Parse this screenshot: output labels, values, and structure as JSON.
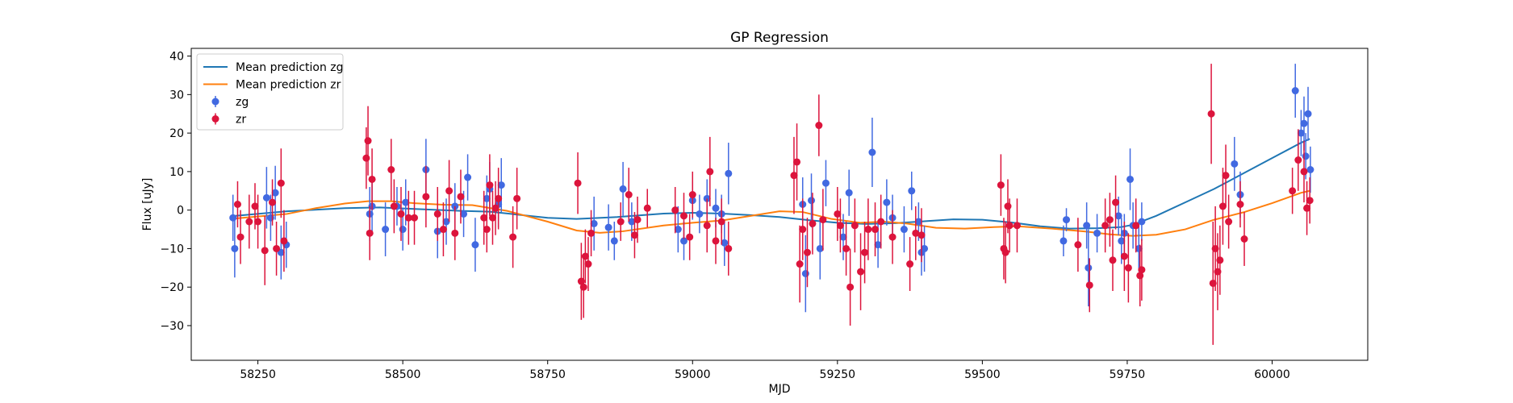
{
  "chart_data": {
    "type": "scatter",
    "title": "GP Regression",
    "xlabel": "MJD",
    "ylabel": "Flux [uJy]",
    "xlim": [
      58135,
      60165
    ],
    "ylim": [
      -39,
      42
    ],
    "xticks": [
      58250,
      58500,
      58750,
      59000,
      59250,
      59500,
      59750,
      60000
    ],
    "yticks": [
      -30,
      -20,
      -10,
      0,
      10,
      20,
      30,
      40
    ],
    "grid": false,
    "legend": "upper left",
    "series": [
      {
        "name": "Mean prediction zg",
        "kind": "line",
        "color": "#1f77b4",
        "points": [
          [
            58210,
            -1.5
          ],
          [
            58300,
            -0.3
          ],
          [
            58400,
            0.5
          ],
          [
            58460,
            0.7
          ],
          [
            58520,
            0.3
          ],
          [
            58600,
            -0.2
          ],
          [
            58650,
            -0.4
          ],
          [
            58750,
            -2.0
          ],
          [
            58800,
            -2.3
          ],
          [
            58870,
            -1.8
          ],
          [
            58950,
            -0.9
          ],
          [
            59000,
            -0.7
          ],
          [
            59050,
            -0.9
          ],
          [
            59100,
            -1.3
          ],
          [
            59150,
            -1.8
          ],
          [
            59200,
            -2.6
          ],
          [
            59250,
            -3.3
          ],
          [
            59300,
            -3.6
          ],
          [
            59350,
            -3.4
          ],
          [
            59400,
            -2.9
          ],
          [
            59450,
            -2.4
          ],
          [
            59500,
            -2.5
          ],
          [
            59550,
            -3.2
          ],
          [
            59600,
            -4.2
          ],
          [
            59650,
            -4.8
          ],
          [
            59700,
            -4.7
          ],
          [
            59740,
            -4.4
          ],
          [
            59760,
            -3.8
          ],
          [
            59800,
            -1.5
          ],
          [
            59850,
            2.0
          ],
          [
            59900,
            5.5
          ],
          [
            59950,
            9.5
          ],
          [
            60000,
            13.5
          ],
          [
            60050,
            17.5
          ],
          [
            60065,
            18.5
          ]
        ]
      },
      {
        "name": "Mean prediction zr",
        "kind": "line",
        "color": "#ff7f0e",
        "points": [
          [
            58210,
            -2.2
          ],
          [
            58300,
            -1.0
          ],
          [
            58350,
            0.5
          ],
          [
            58400,
            1.7
          ],
          [
            58440,
            2.3
          ],
          [
            58480,
            2.3
          ],
          [
            58520,
            1.8
          ],
          [
            58570,
            1.4
          ],
          [
            58620,
            1.3
          ],
          [
            58680,
            -0.2
          ],
          [
            58750,
            -3.0
          ],
          [
            58800,
            -5.3
          ],
          [
            58840,
            -5.9
          ],
          [
            58880,
            -5.5
          ],
          [
            58950,
            -4.0
          ],
          [
            59000,
            -3.3
          ],
          [
            59050,
            -2.7
          ],
          [
            59100,
            -1.5
          ],
          [
            59150,
            -0.3
          ],
          [
            59190,
            -0.5
          ],
          [
            59240,
            -2.3
          ],
          [
            59290,
            -3.3
          ],
          [
            59330,
            -3.0
          ],
          [
            59370,
            -3.5
          ],
          [
            59420,
            -4.6
          ],
          [
            59470,
            -4.8
          ],
          [
            59520,
            -4.4
          ],
          [
            59560,
            -4.2
          ],
          [
            59620,
            -4.8
          ],
          [
            59680,
            -5.6
          ],
          [
            59720,
            -6.3
          ],
          [
            59760,
            -6.7
          ],
          [
            59800,
            -6.4
          ],
          [
            59850,
            -5.0
          ],
          [
            59900,
            -2.5
          ],
          [
            59950,
            -0.6
          ],
          [
            60000,
            1.8
          ],
          [
            60050,
            4.5
          ],
          [
            60065,
            5.0
          ]
        ]
      },
      {
        "name": "zg",
        "kind": "errorbar",
        "color": "#4169e1",
        "points": [
          [
            58207,
            -2,
            6
          ],
          [
            58210,
            -10,
            7.5
          ],
          [
            58265,
            3.2,
            8
          ],
          [
            58272,
            -2,
            6
          ],
          [
            58280,
            4.5,
            7
          ],
          [
            58290,
            -11,
            7
          ],
          [
            58299,
            -9,
            6
          ],
          [
            58443,
            -1,
            7
          ],
          [
            58447,
            1,
            7
          ],
          [
            58470,
            -5,
            7
          ],
          [
            58490,
            1,
            5
          ],
          [
            58500,
            -5,
            5.5
          ],
          [
            58505,
            2,
            6
          ],
          [
            58540,
            10.5,
            8
          ],
          [
            58560,
            -5.5,
            7
          ],
          [
            58575,
            -3,
            6
          ],
          [
            58590,
            1,
            6
          ],
          [
            58605,
            -1,
            6
          ],
          [
            58612,
            8.5,
            6
          ],
          [
            58625,
            -9,
            7
          ],
          [
            58645,
            3,
            6
          ],
          [
            58650,
            5.5,
            7
          ],
          [
            58665,
            1.5,
            6
          ],
          [
            58670,
            6.5,
            7
          ],
          [
            58830,
            -3.5,
            7
          ],
          [
            58855,
            -4.5,
            6
          ],
          [
            58865,
            -8,
            5
          ],
          [
            58880,
            5.5,
            7
          ],
          [
            58895,
            -3,
            5
          ],
          [
            58975,
            -5,
            6
          ],
          [
            58985,
            -8,
            5
          ],
          [
            59000,
            2.5,
            5
          ],
          [
            59012,
            -1,
            5
          ],
          [
            59025,
            3,
            5
          ],
          [
            59040,
            0.5,
            5
          ],
          [
            59050,
            -1,
            5
          ],
          [
            59055,
            -8.5,
            6
          ],
          [
            59062,
            9.5,
            8
          ],
          [
            59190,
            1.5,
            7
          ],
          [
            59195,
            -16.5,
            10
          ],
          [
            59205,
            2.5,
            7
          ],
          [
            59220,
            -10,
            8
          ],
          [
            59230,
            7,
            6
          ],
          [
            59260,
            -7,
            6
          ],
          [
            59270,
            4.5,
            6
          ],
          [
            59310,
            15,
            9
          ],
          [
            59320,
            -9,
            6
          ],
          [
            59335,
            2,
            6
          ],
          [
            59345,
            -2,
            6
          ],
          [
            59365,
            -5,
            6
          ],
          [
            59378,
            5,
            5
          ],
          [
            59390,
            -3,
            5
          ],
          [
            59395,
            -11,
            6
          ],
          [
            59400,
            -10,
            6
          ],
          [
            59640,
            -8,
            4
          ],
          [
            59645,
            -2.5,
            3
          ],
          [
            59680,
            -4,
            6
          ],
          [
            59683,
            -15,
            10
          ],
          [
            59698,
            -6,
            5
          ],
          [
            59735,
            -1.5,
            5
          ],
          [
            59740,
            -8,
            6
          ],
          [
            59745,
            -6,
            5
          ],
          [
            59755,
            8,
            8
          ],
          [
            59760,
            -4,
            6
          ],
          [
            59770,
            -10,
            6
          ],
          [
            59775,
            -3,
            5
          ],
          [
            59935,
            12,
            7
          ],
          [
            59945,
            4,
            6
          ],
          [
            60040,
            31,
            7
          ],
          [
            60050,
            20,
            6
          ],
          [
            60055,
            22.5,
            7
          ],
          [
            60058,
            14,
            6
          ],
          [
            60062,
            25,
            7
          ],
          [
            60066,
            10.5,
            6
          ]
        ]
      },
      {
        "name": "zr",
        "kind": "errorbar",
        "color": "#dc143c",
        "points": [
          [
            58215,
            1.5,
            6
          ],
          [
            58220,
            -7,
            7
          ],
          [
            58235,
            -3,
            7
          ],
          [
            58245,
            1,
            6
          ],
          [
            58250,
            -3,
            7
          ],
          [
            58262,
            -10.5,
            9
          ],
          [
            58275,
            2,
            6
          ],
          [
            58282,
            -10,
            7
          ],
          [
            58290,
            7,
            9
          ],
          [
            58295,
            -8,
            8
          ],
          [
            58437,
            13.5,
            8
          ],
          [
            58440,
            18,
            9
          ],
          [
            58443,
            -6,
            7
          ],
          [
            58447,
            8,
            8
          ],
          [
            58480,
            10.5,
            8
          ],
          [
            58485,
            1,
            7
          ],
          [
            58497,
            -1,
            7
          ],
          [
            58510,
            -2,
            7
          ],
          [
            58520,
            -2,
            7
          ],
          [
            58540,
            3.5,
            8
          ],
          [
            58560,
            -1,
            7
          ],
          [
            58570,
            -5,
            7
          ],
          [
            58580,
            5,
            8
          ],
          [
            58590,
            -6,
            7
          ],
          [
            58600,
            3.5,
            7
          ],
          [
            58640,
            -2,
            7
          ],
          [
            58645,
            -5,
            6
          ],
          [
            58650,
            6.5,
            8
          ],
          [
            58655,
            -2,
            7
          ],
          [
            58660,
            0.5,
            7
          ],
          [
            58665,
            3,
            8
          ],
          [
            58690,
            -7,
            8
          ],
          [
            58697,
            3,
            8
          ],
          [
            58802,
            7,
            8
          ],
          [
            58808,
            -18.5,
            10
          ],
          [
            58812,
            -20,
            8
          ],
          [
            58815,
            -12,
            7
          ],
          [
            58820,
            -14,
            7
          ],
          [
            58825,
            -6,
            6
          ],
          [
            58876,
            -3,
            5
          ],
          [
            58890,
            4,
            7
          ],
          [
            58900,
            -6.5,
            6
          ],
          [
            58905,
            -2.5,
            6
          ],
          [
            58922,
            0.5,
            5
          ],
          [
            58970,
            0,
            6
          ],
          [
            58985,
            -1.5,
            6
          ],
          [
            58995,
            -7,
            6
          ],
          [
            59000,
            4,
            6
          ],
          [
            59025,
            -4,
            7
          ],
          [
            59030,
            10,
            9
          ],
          [
            59040,
            -8,
            6
          ],
          [
            59050,
            -3,
            6
          ],
          [
            59062,
            -10,
            7
          ],
          [
            59175,
            9,
            10
          ],
          [
            59180,
            12.5,
            10
          ],
          [
            59185,
            -14,
            10
          ],
          [
            59190,
            -5,
            8
          ],
          [
            59198,
            -11,
            9
          ],
          [
            59207,
            -3.5,
            8
          ],
          [
            59218,
            22,
            8
          ],
          [
            59225,
            -2.5,
            8
          ],
          [
            59250,
            -1,
            7
          ],
          [
            59255,
            -4,
            7
          ],
          [
            59265,
            -10,
            7
          ],
          [
            59272,
            -20,
            10
          ],
          [
            59280,
            -4,
            7
          ],
          [
            59290,
            -16,
            10
          ],
          [
            59297,
            -11,
            8
          ],
          [
            59303,
            -5,
            8
          ],
          [
            59315,
            -5,
            7
          ],
          [
            59325,
            -3,
            7
          ],
          [
            59345,
            -7,
            7
          ],
          [
            59375,
            -14,
            7
          ],
          [
            59385,
            -6,
            7
          ],
          [
            59395,
            -6.5,
            7
          ],
          [
            59532,
            6.5,
            8
          ],
          [
            59537,
            -10,
            8
          ],
          [
            59540,
            -11,
            8
          ],
          [
            59544,
            1,
            7
          ],
          [
            59547,
            -4,
            7
          ],
          [
            59560,
            -4,
            7
          ],
          [
            59665,
            -9,
            7
          ],
          [
            59685,
            -19.5,
            7
          ],
          [
            59712,
            -4,
            7
          ],
          [
            59720,
            -2.5,
            7
          ],
          [
            59725,
            -13,
            8
          ],
          [
            59730,
            2,
            7
          ],
          [
            59745,
            -12,
            9
          ],
          [
            59752,
            -15,
            9
          ],
          [
            59765,
            -4,
            7
          ],
          [
            59772,
            -17,
            8
          ],
          [
            59775,
            -15.5,
            8
          ],
          [
            59895,
            25,
            13
          ],
          [
            59898,
            -19,
            16
          ],
          [
            59902,
            -10,
            11
          ],
          [
            59906,
            -16,
            10
          ],
          [
            59910,
            -13,
            9
          ],
          [
            59915,
            1,
            10
          ],
          [
            59920,
            9,
            8
          ],
          [
            59925,
            -3,
            7
          ],
          [
            59945,
            1.5,
            6
          ],
          [
            59952,
            -7.5,
            7
          ],
          [
            60035,
            5,
            6
          ],
          [
            60045,
            13,
            8
          ],
          [
            60055,
            10,
            8
          ],
          [
            60060,
            0.5,
            7
          ],
          [
            60065,
            2.5,
            6
          ]
        ]
      }
    ]
  }
}
